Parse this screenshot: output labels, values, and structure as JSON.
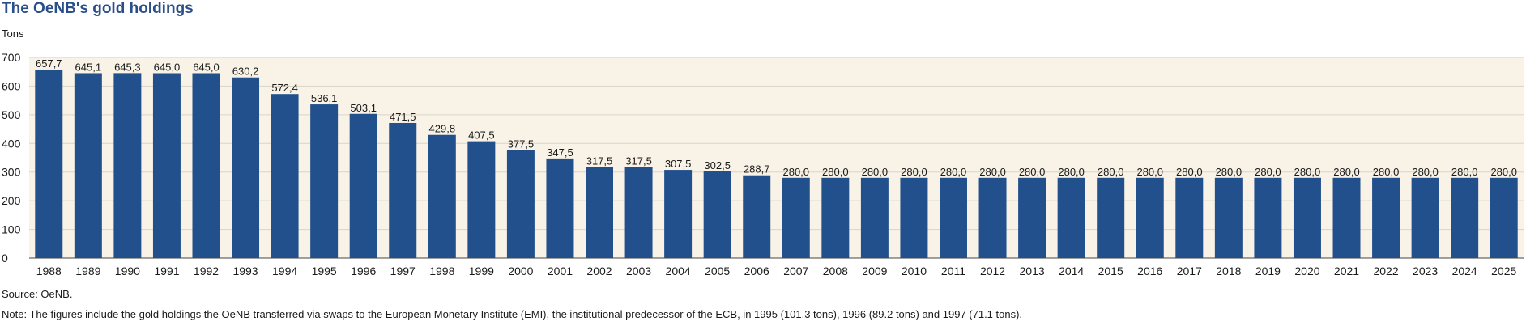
{
  "title": "The OeNB's gold holdings",
  "source": "Source: OeNB.",
  "note": "Note: The figures include the gold holdings the OeNB transferred via swaps to the European Monetary Institute (EMI), the institutional predecessor of the ECB, in 1995 (101.3 tons), 1996 (89.2 tons) and 1997 (71.1 tons).",
  "colors": {
    "bar": "#22508c",
    "plot_background": "#f8f3e6",
    "gridline": "#d9d4c6",
    "title": "#2a4e8a"
  },
  "chart_data": {
    "type": "bar",
    "title": "The OeNB's gold holdings",
    "ylabel": "Tons",
    "xlabel": "",
    "ylim": [
      0,
      700
    ],
    "yticks": [
      "0",
      "100",
      "200",
      "300",
      "400",
      "500",
      "600",
      "700"
    ],
    "grid": true,
    "categories": [
      "1988",
      "1989",
      "1990",
      "1991",
      "1992",
      "1993",
      "1994",
      "1995",
      "1996",
      "1997",
      "1998",
      "1999",
      "2000",
      "2001",
      "2002",
      "2003",
      "2004",
      "2005",
      "2006",
      "2007",
      "2008",
      "2009",
      "2010",
      "2011",
      "2012",
      "2013",
      "2014",
      "2015",
      "2016",
      "2017",
      "2018",
      "2019",
      "2020",
      "2021",
      "2022",
      "2023",
      "2024",
      "2025"
    ],
    "values": [
      657.7,
      645.1,
      645.3,
      645.0,
      645.0,
      630.2,
      572.4,
      536.1,
      503.1,
      471.5,
      429.8,
      407.5,
      377.5,
      347.5,
      317.5,
      317.5,
      307.5,
      302.5,
      288.7,
      280.0,
      280.0,
      280.0,
      280.0,
      280.0,
      280.0,
      280.0,
      280.0,
      280.0,
      280.0,
      280.0,
      280.0,
      280.0,
      280.0,
      280.0,
      280.0,
      280.0,
      280.0,
      280.0
    ],
    "labels": [
      "657,7",
      "645,1",
      "645,3",
      "645,0",
      "645,0",
      "630,2",
      "572,4",
      "536,1",
      "503,1",
      "471,5",
      "429,8",
      "407,5",
      "377,5",
      "347,5",
      "317,5",
      "317,5",
      "307,5",
      "302,5",
      "288,7",
      "280,0",
      "280,0",
      "280,0",
      "280,0",
      "280,0",
      "280,0",
      "280,0",
      "280,0",
      "280,0",
      "280,0",
      "280,0",
      "280,0",
      "280,0",
      "280,0",
      "280,0",
      "280,0",
      "280,0",
      "280,0",
      "280,0"
    ]
  }
}
